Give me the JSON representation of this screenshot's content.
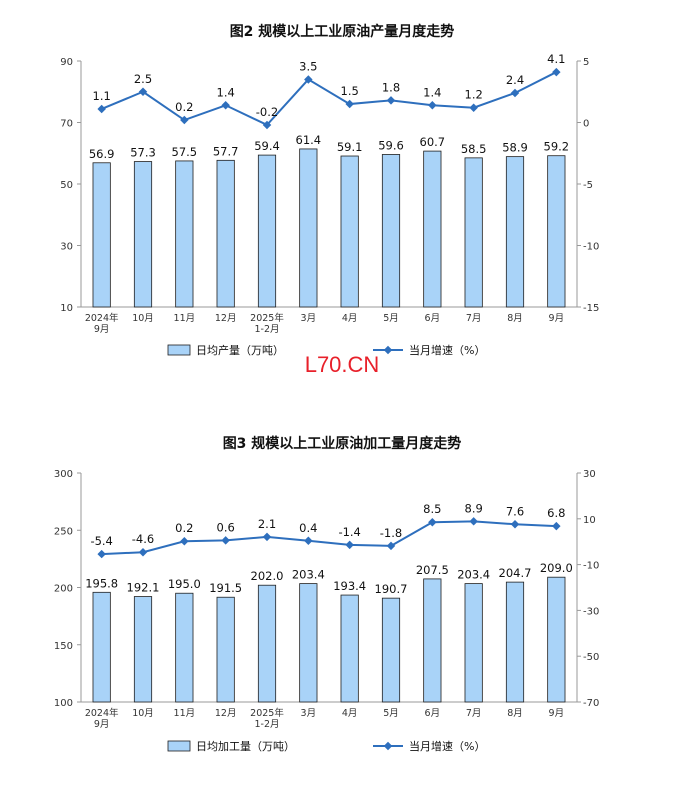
{
  "watermark": "L70.CN",
  "chart_data": [
    {
      "type": "bar",
      "title": "图2  规模以上工业原油产量月度走势",
      "categories": [
        "2024年\n9月",
        "10月",
        "11月",
        "12月",
        "2025年\n1-2月",
        "3月",
        "4月",
        "5月",
        "6月",
        "7月",
        "8月",
        "9月"
      ],
      "series": [
        {
          "name": "日均产量（万吨）",
          "type": "bar",
          "axis": "left",
          "values": [
            56.9,
            57.3,
            57.5,
            57.7,
            59.4,
            61.4,
            59.1,
            59.6,
            60.7,
            58.5,
            58.9,
            59.2
          ]
        },
        {
          "name": "当月增速（%）",
          "type": "line",
          "axis": "right",
          "values": [
            1.1,
            2.5,
            0.2,
            1.4,
            -0.2,
            3.5,
            1.5,
            1.8,
            1.4,
            1.2,
            2.4,
            4.1
          ]
        }
      ],
      "ylim": [
        10,
        90
      ],
      "yticks": [
        10,
        30,
        50,
        70,
        90
      ],
      "y2lim": [
        -15,
        5
      ],
      "y2ticks": [
        -15,
        -10,
        -5,
        0,
        5
      ],
      "legend": "bottom-center",
      "colors": {
        "bar": "#a9d3f8",
        "bar_border": "#1f1f1f",
        "line": "#2e6fbd"
      }
    },
    {
      "type": "bar",
      "title": "图3  规模以上工业原油加工量月度走势",
      "categories": [
        "2024年\n9月",
        "10月",
        "11月",
        "12月",
        "2025年\n1-2月",
        "3月",
        "4月",
        "5月",
        "6月",
        "7月",
        "8月",
        "9月"
      ],
      "series": [
        {
          "name": "日均加工量（万吨）",
          "type": "bar",
          "axis": "left",
          "values": [
            195.8,
            192.1,
            195.0,
            191.5,
            202.0,
            203.4,
            193.4,
            190.7,
            207.5,
            203.4,
            204.7,
            209.0
          ]
        },
        {
          "name": "当月增速（%）",
          "type": "line",
          "axis": "right",
          "values": [
            -5.4,
            -4.6,
            0.2,
            0.6,
            2.1,
            0.4,
            -1.4,
            -1.8,
            8.5,
            8.9,
            7.6,
            6.8
          ]
        }
      ],
      "ylim": [
        100,
        300
      ],
      "yticks": [
        100,
        150,
        200,
        250,
        300
      ],
      "y2lim": [
        -70,
        30
      ],
      "y2ticks": [
        -70,
        -50,
        -30,
        -10,
        10,
        30
      ],
      "legend": "bottom-center",
      "colors": {
        "bar": "#a9d3f8",
        "bar_border": "#1f1f1f",
        "line": "#2e6fbd"
      }
    }
  ]
}
